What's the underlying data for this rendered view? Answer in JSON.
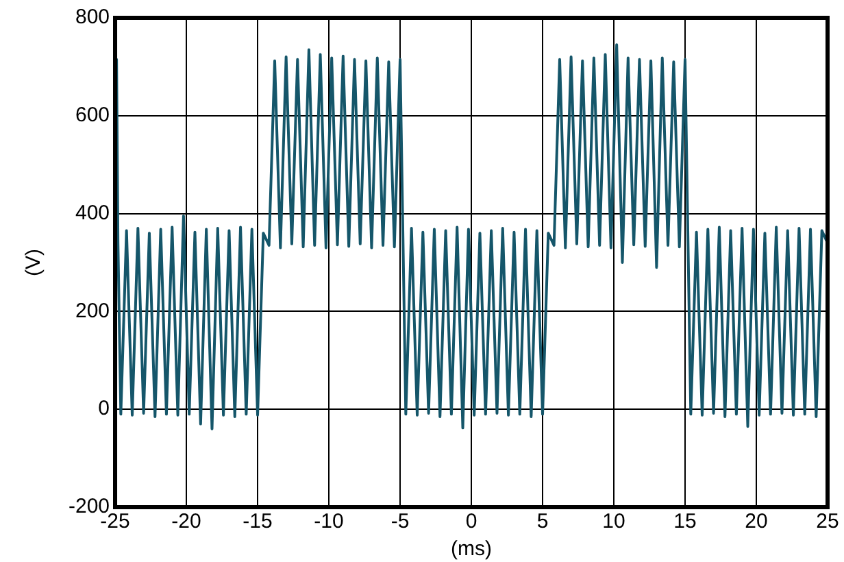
{
  "chart_data": {
    "type": "line",
    "xlabel": "(ms)",
    "ylabel": "(V)",
    "color": "#15566a",
    "marker": "none",
    "grid": true,
    "xlim": [
      -25,
      25
    ],
    "xticks": [
      -25,
      -20,
      -15,
      -10,
      -5,
      0,
      5,
      10,
      15,
      20,
      25
    ],
    "ylim": [
      -200,
      800
    ],
    "yticks": [
      -200,
      0,
      200,
      400,
      600,
      800
    ],
    "x": [
      -25,
      -24.9,
      -24.8,
      -24.6,
      -24.2,
      -23.8,
      -23.4,
      -23.0,
      -22.6,
      -22.2,
      -21.8,
      -21.4,
      -21.0,
      -20.6,
      -20.2,
      -19.8,
      -19.4,
      -19.0,
      -18.6,
      -18.2,
      -17.8,
      -17.4,
      -17.0,
      -16.6,
      -16.2,
      -15.8,
      -15.4,
      -15.0,
      -14.6,
      -14.2,
      -13.8,
      -13.4,
      -13.0,
      -12.6,
      -12.2,
      -11.8,
      -11.4,
      -11.0,
      -10.6,
      -10.2,
      -9.8,
      -9.4,
      -9.0,
      -8.6,
      -8.2,
      -7.8,
      -7.4,
      -7.0,
      -6.6,
      -6.2,
      -5.8,
      -5.4,
      -5.0,
      -4.6,
      -4.2,
      -3.8,
      -3.4,
      -3.0,
      -2.6,
      -2.2,
      -1.8,
      -1.4,
      -1.0,
      -0.6,
      -0.2,
      0.2,
      0.6,
      1.0,
      1.4,
      1.8,
      2.2,
      2.6,
      3.0,
      3.4,
      3.8,
      4.2,
      4.6,
      5.0,
      5.4,
      5.8,
      6.2,
      6.6,
      7.0,
      7.4,
      7.8,
      8.2,
      8.6,
      9.0,
      9.4,
      9.8,
      10.2,
      10.6,
      11.0,
      11.4,
      11.8,
      12.2,
      12.6,
      13.0,
      13.4,
      13.8,
      14.2,
      14.6,
      15.0,
      15.4,
      15.8,
      16.2,
      16.6,
      17.0,
      17.4,
      17.8,
      18.2,
      18.6,
      19.0,
      19.4,
      19.8,
      20.2,
      20.6,
      21.0,
      21.4,
      21.8,
      22.2,
      22.6,
      23.0,
      23.4,
      23.8,
      24.2,
      24.6,
      25
    ],
    "values": [
      340,
      715,
      340,
      -10,
      365,
      -12,
      370,
      -8,
      360,
      -15,
      368,
      -10,
      372,
      -12,
      395,
      -10,
      362,
      -30,
      368,
      -40,
      370,
      -12,
      365,
      -15,
      372,
      -10,
      368,
      -12,
      360,
      335,
      712,
      330,
      720,
      338,
      715,
      332,
      735,
      335,
      725,
      330,
      718,
      336,
      722,
      333,
      715,
      338,
      712,
      330,
      718,
      335,
      710,
      332,
      715,
      -10,
      370,
      -12,
      362,
      -8,
      368,
      -15,
      365,
      -10,
      372,
      -38,
      368,
      -12,
      360,
      -10,
      365,
      -8,
      370,
      -12,
      362,
      -10,
      368,
      -15,
      365,
      -10,
      360,
      335,
      715,
      330,
      720,
      338,
      712,
      332,
      718,
      335,
      725,
      330,
      745,
      300,
      718,
      336,
      715,
      333,
      712,
      290,
      718,
      335,
      710,
      332,
      715,
      -10,
      362,
      -12,
      368,
      -8,
      372,
      -15,
      365,
      -10,
      370,
      -35,
      368,
      -12,
      360,
      -10,
      372,
      -8,
      365,
      -12,
      370,
      -10,
      368,
      -15,
      365,
      340
    ]
  }
}
